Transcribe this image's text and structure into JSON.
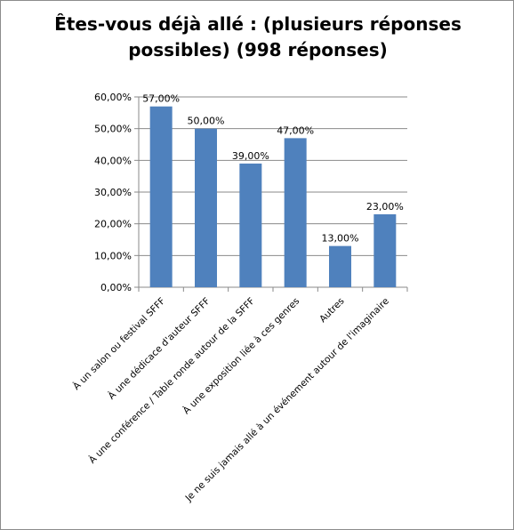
{
  "chart_data": {
    "type": "bar",
    "title": "Êtes-vous déjà allé : (plusieurs réponses possibles) (998 réponses)",
    "xlabel": "",
    "ylabel": "",
    "categories": [
      "À un salon ou festival SFFF",
      "À une dédicace d'auteur SFFF",
      "À une conférence / Table ronde autour de la SFFF",
      "À une exposition liée à ces genres",
      "Autres",
      "Je ne suis jamais allé à un événement autour de l'imaginaire"
    ],
    "values": [
      57,
      50,
      39,
      47,
      13,
      23
    ],
    "data_labels": [
      "57,00%",
      "50,00%",
      "39,00%",
      "47,00%",
      "13,00%",
      "23,00%"
    ],
    "ylim": [
      0,
      60
    ],
    "yticks": [
      0,
      10,
      20,
      30,
      40,
      50,
      60
    ],
    "ytick_labels": [
      "0,00%",
      "10,00%",
      "20,00%",
      "30,00%",
      "40,00%",
      "50,00%",
      "60,00%"
    ],
    "bar_color": "#4f81bd",
    "grid": true,
    "legend": "none"
  }
}
